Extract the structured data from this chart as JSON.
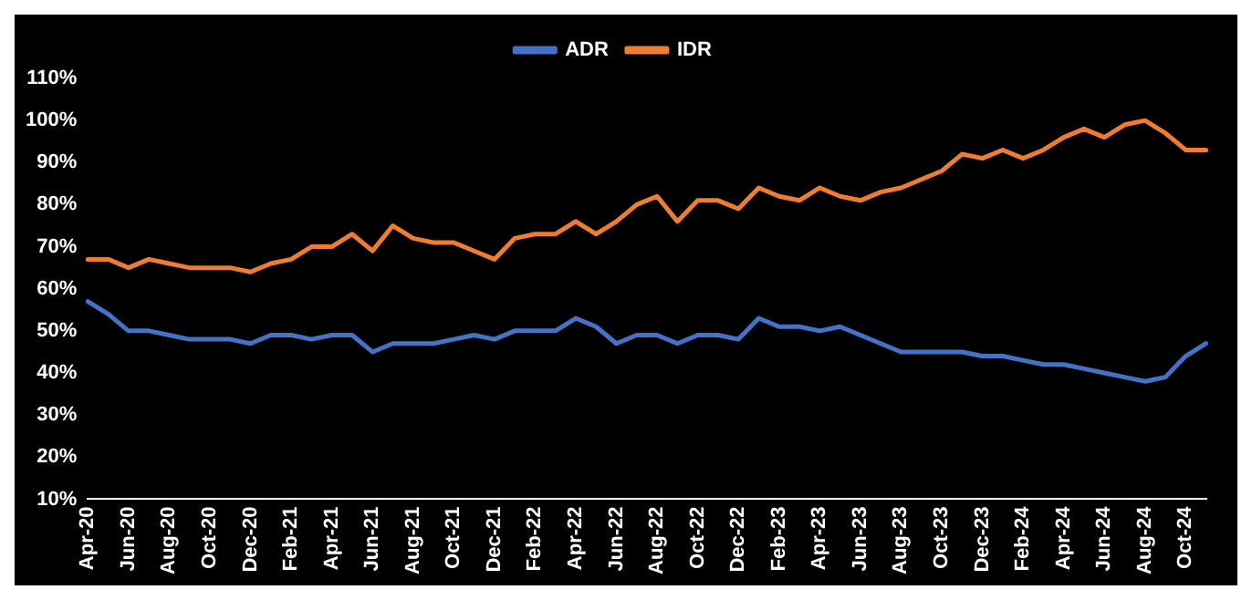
{
  "chart_data": {
    "type": "line",
    "categories": [
      "Apr-20",
      null,
      "Jun-20",
      null,
      "Aug-20",
      null,
      "Oct-20",
      null,
      "Dec-20",
      null,
      "Feb-21",
      null,
      "Apr-21",
      null,
      "Jun-21",
      null,
      "Aug-21",
      null,
      "Oct-21",
      null,
      "Dec-21",
      null,
      "Feb-22",
      null,
      "Apr-22",
      null,
      "Jun-22",
      null,
      "Aug-22",
      null,
      "Oct-22",
      null,
      "Dec-22",
      null,
      "Feb-23",
      null,
      "Apr-23",
      null,
      "Jun-23",
      null,
      "Aug-23",
      null,
      "Oct-23",
      null,
      "Dec-23",
      null,
      "Feb-24",
      null,
      "Apr-24",
      null,
      "Jun-24",
      null,
      "Aug-24",
      null,
      "Oct-24",
      null
    ],
    "series": [
      {
        "name": "ADR",
        "color": "#4472c4",
        "values": [
          57,
          54,
          50,
          50,
          49,
          48,
          48,
          48,
          47,
          49,
          49,
          48,
          49,
          49,
          45,
          47,
          47,
          47,
          48,
          49,
          48,
          50,
          50,
          50,
          53,
          51,
          47,
          49,
          49,
          47,
          49,
          49,
          48,
          53,
          51,
          51,
          50,
          51,
          49,
          47,
          45,
          45,
          45,
          45,
          44,
          44,
          43,
          42,
          42,
          41,
          40,
          39,
          38,
          39,
          44,
          47
        ]
      },
      {
        "name": "IDR",
        "color": "#ed7d31",
        "values": [
          67,
          67,
          65,
          67,
          66,
          65,
          65,
          65,
          64,
          66,
          67,
          70,
          70,
          73,
          69,
          75,
          72,
          71,
          71,
          69,
          67,
          72,
          73,
          73,
          76,
          73,
          76,
          80,
          82,
          76,
          81,
          81,
          79,
          84,
          82,
          81,
          84,
          82,
          81,
          83,
          84,
          86,
          88,
          92,
          91,
          93,
          91,
          93,
          96,
          98,
          96,
          99,
          100,
          97,
          93,
          93
        ]
      }
    ],
    "ylim": [
      10,
      110
    ],
    "yticks": [
      {
        "value": 10,
        "label": "10%"
      },
      {
        "value": 20,
        "label": "20%"
      },
      {
        "value": 30,
        "label": "30%"
      },
      {
        "value": 40,
        "label": "40%"
      },
      {
        "value": 50,
        "label": "50%"
      },
      {
        "value": 60,
        "label": "60%"
      },
      {
        "value": 70,
        "label": "70%"
      },
      {
        "value": 80,
        "label": "80%"
      },
      {
        "value": 90,
        "label": "90%"
      },
      {
        "value": 100,
        "label": "100%"
      },
      {
        "value": 110,
        "label": "110%"
      }
    ],
    "grid": false,
    "legend": "top",
    "marker": "none",
    "line_style": "solid"
  }
}
